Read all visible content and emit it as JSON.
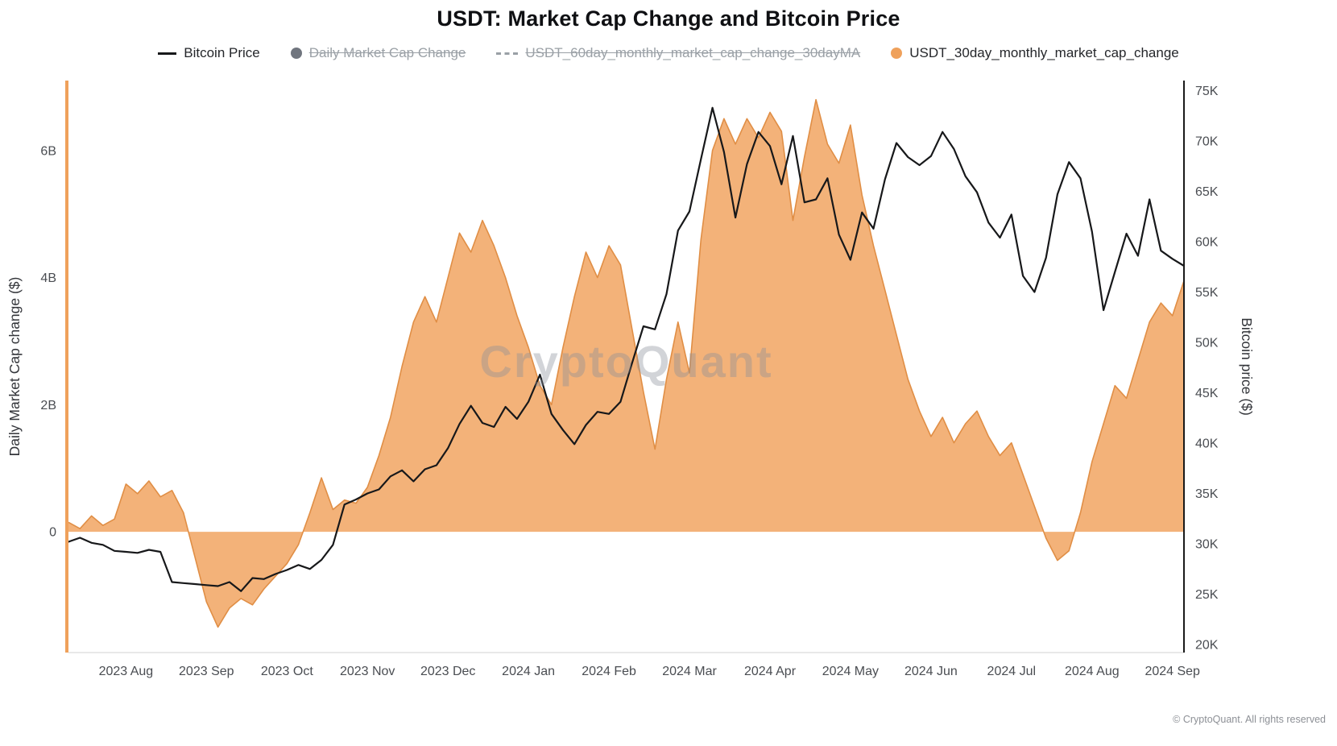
{
  "title": "USDT: Market Cap Change and Bitcoin Price",
  "watermark": "CryptoQuant",
  "footer": "© CryptoQuant. All rights reserved",
  "legend": {
    "items": [
      {
        "label": "Bitcoin Price",
        "marker": "line",
        "color": "#17181a",
        "enabled": true
      },
      {
        "label": "Daily Market Cap Change",
        "marker": "circle",
        "color": "#70757e",
        "enabled": false
      },
      {
        "label": "USDT_60day_monthly_market_cap_change_30dayMA",
        "marker": "dash",
        "color": "#9aa0a6",
        "enabled": false
      },
      {
        "label": "USDT_30day_monthly_market_cap_change",
        "marker": "circle",
        "color": "#EFA15B",
        "enabled": true
      }
    ]
  },
  "chart_data": {
    "type": "mixed",
    "title": "USDT: Market Cap Change and Bitcoin Price",
    "left_axis": {
      "title": "Daily Market Cap change ($)",
      "unit": "B",
      "range": [
        -1.9,
        7.1
      ],
      "ticks": [
        {
          "value": 0,
          "label": "0"
        },
        {
          "value": 2,
          "label": "2B"
        },
        {
          "value": 4,
          "label": "4B"
        },
        {
          "value": 6,
          "label": "6B"
        }
      ]
    },
    "right_axis": {
      "title": "Bitcoin price ($)",
      "unit": "K",
      "range": [
        19.2,
        76
      ],
      "ticks": [
        {
          "value": 20,
          "label": "20K"
        },
        {
          "value": 25,
          "label": "25K"
        },
        {
          "value": 30,
          "label": "30K"
        },
        {
          "value": 35,
          "label": "35K"
        },
        {
          "value": 40,
          "label": "40K"
        },
        {
          "value": 45,
          "label": "45K"
        },
        {
          "value": 50,
          "label": "50K"
        },
        {
          "value": 55,
          "label": "55K"
        },
        {
          "value": 60,
          "label": "60K"
        },
        {
          "value": 65,
          "label": "65K"
        },
        {
          "value": 70,
          "label": "70K"
        },
        {
          "value": 75,
          "label": "75K"
        }
      ]
    },
    "x_labels": [
      {
        "label": "2023 Aug",
        "index": 5
      },
      {
        "label": "2023 Sep",
        "index": 12
      },
      {
        "label": "2023 Oct",
        "index": 19
      },
      {
        "label": "2023 Nov",
        "index": 26
      },
      {
        "label": "2023 Dec",
        "index": 33
      },
      {
        "label": "2024 Jan",
        "index": 40
      },
      {
        "label": "2024 Feb",
        "index": 47
      },
      {
        "label": "2024 Mar",
        "index": 54
      },
      {
        "label": "2024 Apr",
        "index": 61
      },
      {
        "label": "2024 May",
        "index": 68
      },
      {
        "label": "2024 Jun",
        "index": 75
      },
      {
        "label": "2024 Jul",
        "index": 82
      },
      {
        "label": "2024 Aug",
        "index": 89
      },
      {
        "label": "2024 Sep",
        "index": 96
      }
    ],
    "series": [
      {
        "name": "USDT_30day_monthly_market_cap_change",
        "type": "area",
        "axis": "left",
        "unit": "B USD",
        "color": "#EFA15B",
        "fill": "#F1A767",
        "edge": "#E08E45",
        "values": [
          0.15,
          0.05,
          0.25,
          0.1,
          0.2,
          0.75,
          0.6,
          0.8,
          0.55,
          0.65,
          0.3,
          -0.4,
          -1.1,
          -1.5,
          -1.2,
          -1.05,
          -1.15,
          -0.9,
          -0.7,
          -0.5,
          -0.2,
          0.3,
          0.85,
          0.35,
          0.5,
          0.45,
          0.7,
          1.2,
          1.8,
          2.6,
          3.3,
          3.7,
          3.3,
          4.0,
          4.7,
          4.4,
          4.9,
          4.5,
          4.0,
          3.4,
          2.9,
          2.3,
          2.0,
          2.9,
          3.7,
          4.4,
          4.0,
          4.5,
          4.2,
          3.2,
          2.2,
          1.3,
          2.4,
          3.3,
          2.5,
          4.6,
          6.0,
          6.5,
          6.1,
          6.5,
          6.2,
          6.6,
          6.3,
          4.9,
          5.9,
          6.8,
          6.1,
          5.8,
          6.4,
          5.3,
          4.5,
          3.8,
          3.1,
          2.4,
          1.9,
          1.5,
          1.8,
          1.4,
          1.7,
          1.9,
          1.5,
          1.2,
          1.4,
          0.9,
          0.4,
          -0.1,
          -0.45,
          -0.3,
          0.3,
          1.1,
          1.7,
          2.3,
          2.1,
          2.7,
          3.3,
          3.6,
          3.4,
          3.95
        ]
      },
      {
        "name": "Bitcoin Price",
        "type": "line",
        "axis": "right",
        "unit": "K USD",
        "color": "#17181a",
        "values": [
          30.2,
          30.6,
          30.1,
          29.9,
          29.3,
          29.2,
          29.1,
          29.4,
          29.2,
          26.2,
          26.1,
          26.0,
          25.9,
          25.8,
          26.2,
          25.3,
          26.6,
          26.5,
          27.0,
          27.4,
          27.9,
          27.5,
          28.4,
          29.9,
          33.9,
          34.4,
          35.0,
          35.4,
          36.7,
          37.3,
          36.2,
          37.4,
          37.8,
          39.5,
          41.9,
          43.7,
          42.0,
          41.6,
          43.6,
          42.4,
          44.1,
          46.8,
          42.9,
          41.3,
          39.9,
          41.8,
          43.1,
          42.9,
          44.1,
          47.9,
          51.6,
          51.3,
          54.8,
          61.1,
          63.0,
          68.2,
          73.3,
          68.9,
          62.4,
          67.7,
          70.9,
          69.5,
          65.7,
          70.5,
          63.9,
          64.2,
          66.3,
          60.7,
          58.2,
          62.9,
          61.3,
          66.2,
          69.8,
          68.4,
          67.6,
          68.5,
          70.9,
          69.2,
          66.5,
          64.9,
          61.9,
          60.4,
          62.7,
          56.6,
          55.0,
          58.4,
          64.7,
          67.9,
          66.3,
          61.0,
          53.2,
          57.0,
          60.8,
          58.6,
          64.2,
          59.1,
          58.3,
          57.6
        ]
      }
    ]
  }
}
